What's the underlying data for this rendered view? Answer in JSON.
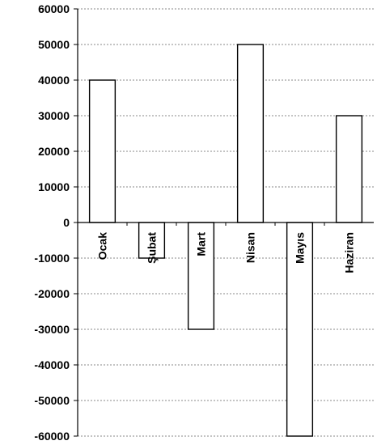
{
  "chart_data": {
    "type": "bar",
    "title": "",
    "xlabel": "",
    "ylabel": "",
    "categories": [
      "Ocak",
      "Şubat",
      "Mart",
      "Nisan",
      "Mayıs",
      "Haziran"
    ],
    "values": [
      40000,
      -10000,
      -30000,
      50000,
      -60000,
      30000
    ],
    "ylim": [
      -60000,
      60000
    ],
    "y_ticks": [
      "60000",
      "50000",
      "40000",
      "30000",
      "20000",
      "10000",
      "0",
      "-10000",
      "-20000",
      "-30000",
      "-40000",
      "-50000",
      "-60000"
    ],
    "grid": true,
    "legend": "none",
    "bar_fill": "#ffffff",
    "bar_stroke": "#000000",
    "grid_color": "#8a8a8a"
  }
}
